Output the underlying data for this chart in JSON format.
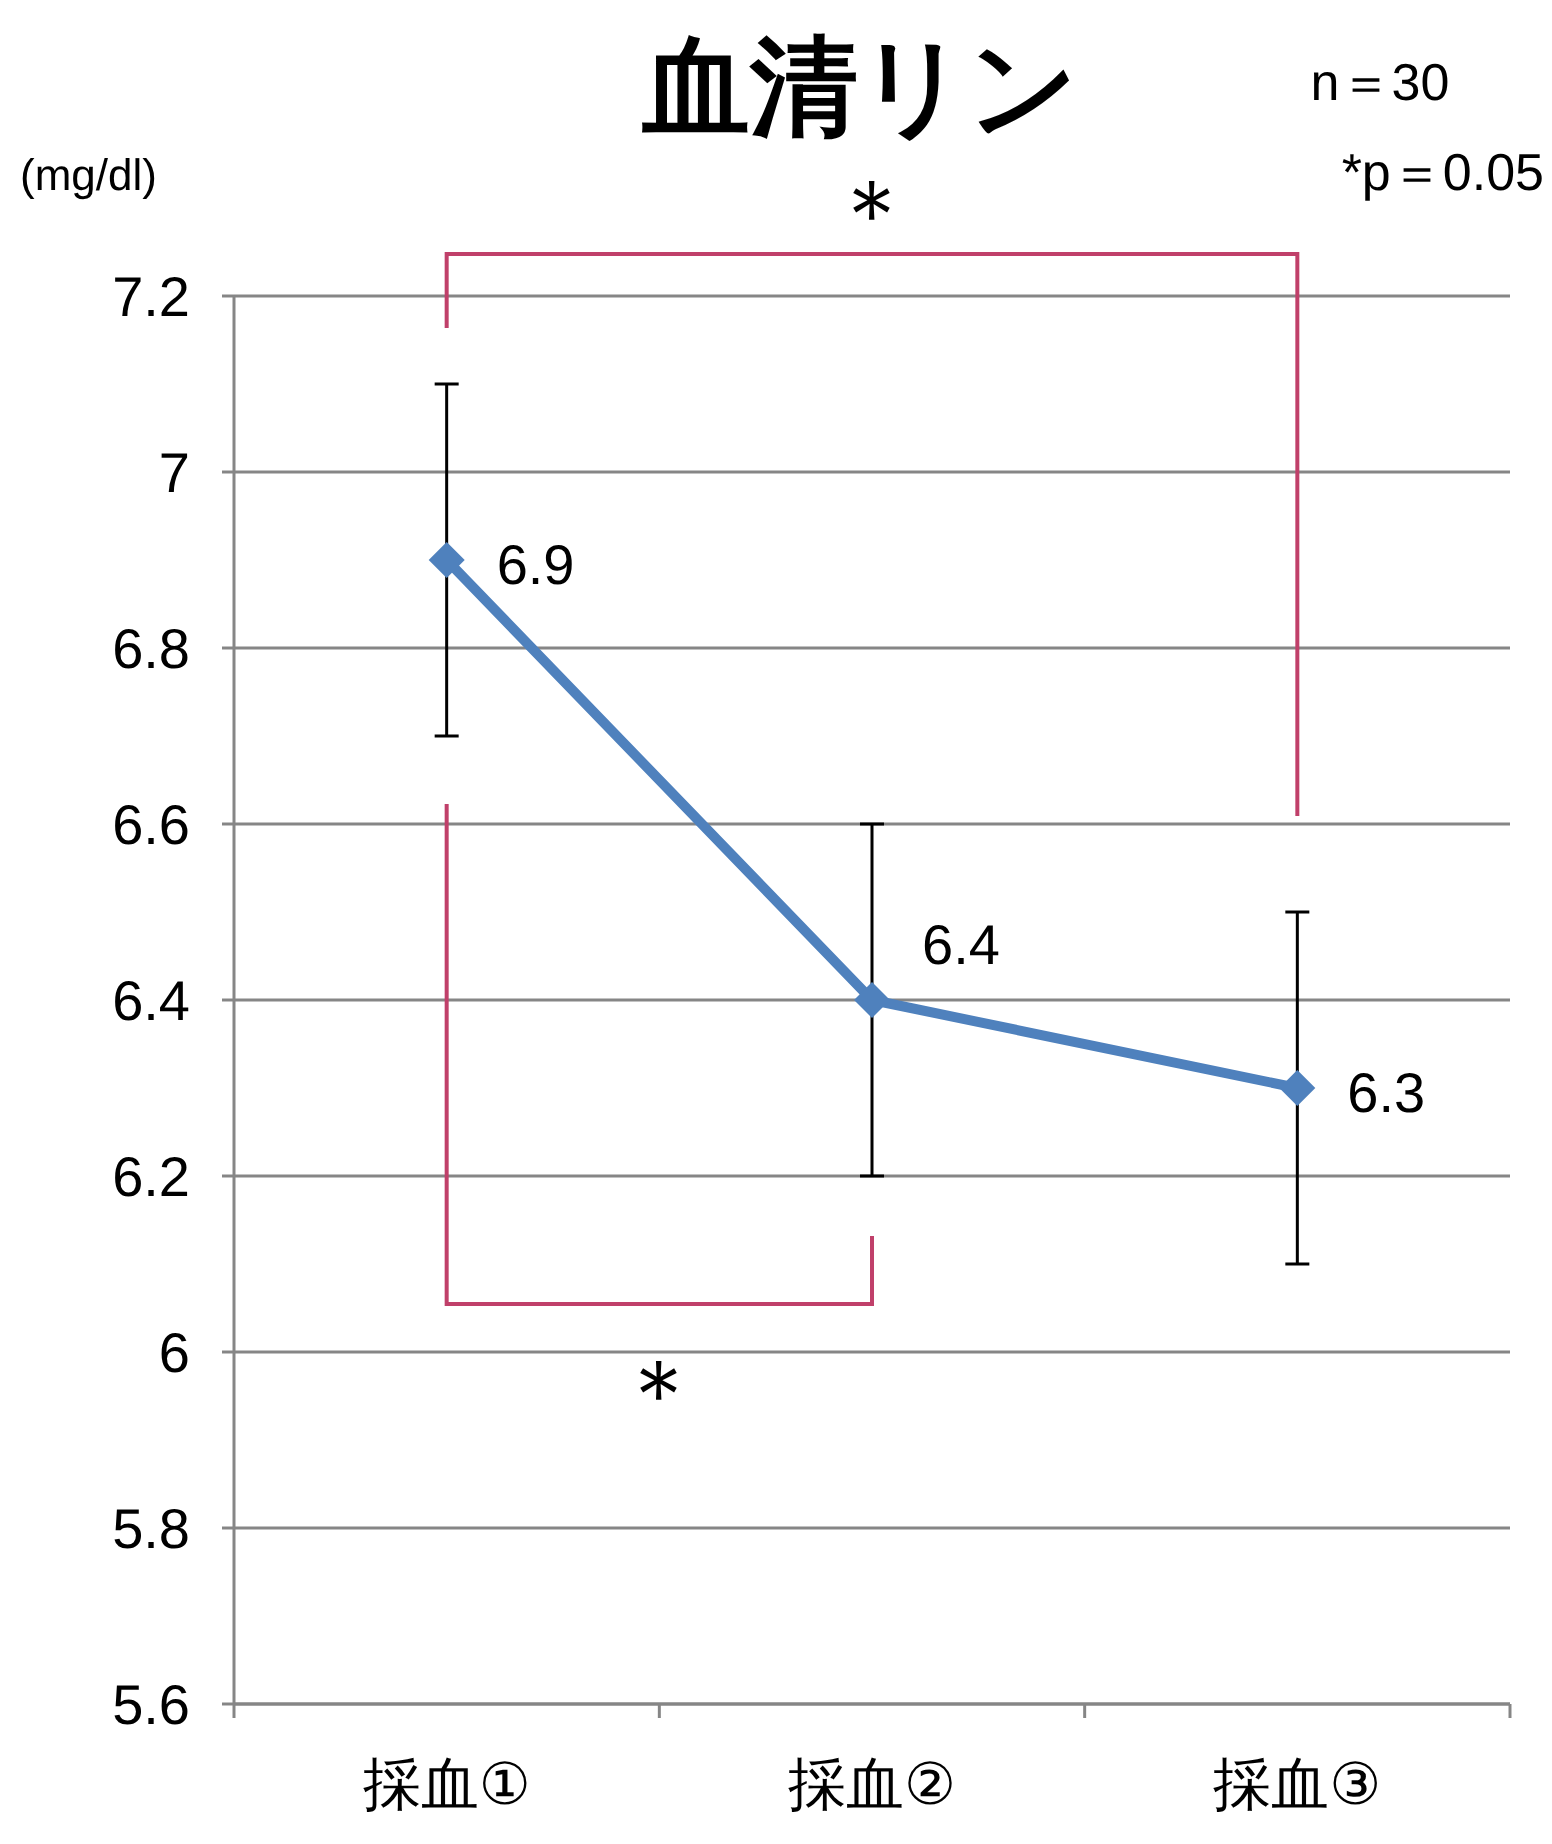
{
  "chart_data": {
    "type": "line",
    "title": "血清リン",
    "ylabel": "(mg/dl)",
    "categories": [
      "採血①",
      "採血②",
      "採血③"
    ],
    "series": [
      {
        "color": "#4f81bd",
        "values": [
          6.9,
          6.4,
          6.3
        ],
        "errors": [
          0.2,
          0.2,
          0.2
        ]
      }
    ],
    "ylim": [
      5.6,
      7.2
    ],
    "yticks": [
      5.6,
      5.8,
      6,
      6.2,
      6.4,
      6.6,
      6.8,
      7,
      7.2
    ],
    "grid": "y",
    "marker": "diamond",
    "line_style": "solid",
    "data_labels": true,
    "annotations": [
      "n＝30",
      "*p＝0.05",
      "＊",
      "＊"
    ]
  }
}
